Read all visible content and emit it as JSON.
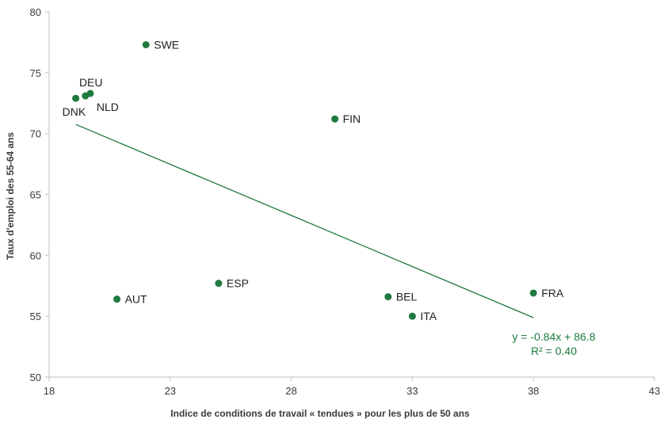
{
  "colors": {
    "point": "#1f7a3f",
    "trendline": "#1f7a3f",
    "axis": "#bfbfbf",
    "text": "#3a3a3a"
  },
  "chart_data": {
    "type": "scatter",
    "xlabel": "Indice de conditions de travail « tendues » pour les plus de 50 ans",
    "ylabel": "Taux d'emploi des 55-64 ans",
    "xlim": [
      18,
      43
    ],
    "ylim": [
      50,
      80
    ],
    "xticks": [
      18,
      23,
      28,
      33,
      38,
      43
    ],
    "yticks": [
      50,
      55,
      60,
      65,
      70,
      75,
      80
    ],
    "grid": false,
    "points": [
      {
        "label": "SWE",
        "x": 22.0,
        "y": 77.3
      },
      {
        "label": "DEU",
        "x": 19.7,
        "y": 73.3
      },
      {
        "label": "NLD",
        "x": 19.5,
        "y": 73.1
      },
      {
        "label": "DNK",
        "x": 19.1,
        "y": 72.9
      },
      {
        "label": "FIN",
        "x": 29.8,
        "y": 71.2
      },
      {
        "label": "ESP",
        "x": 25.0,
        "y": 57.7
      },
      {
        "label": "AUT",
        "x": 20.8,
        "y": 56.4
      },
      {
        "label": "BEL",
        "x": 32.0,
        "y": 56.6
      },
      {
        "label": "FRA",
        "x": 38.0,
        "y": 56.9
      },
      {
        "label": "ITA",
        "x": 33.0,
        "y": 55.0
      }
    ],
    "trendline": {
      "x_start": 19.1,
      "x_end": 38.0,
      "slope": -0.84,
      "intercept": 86.8,
      "equation": "y = -0.84x + 86.8",
      "r_squared": "R² = 0.40"
    }
  }
}
